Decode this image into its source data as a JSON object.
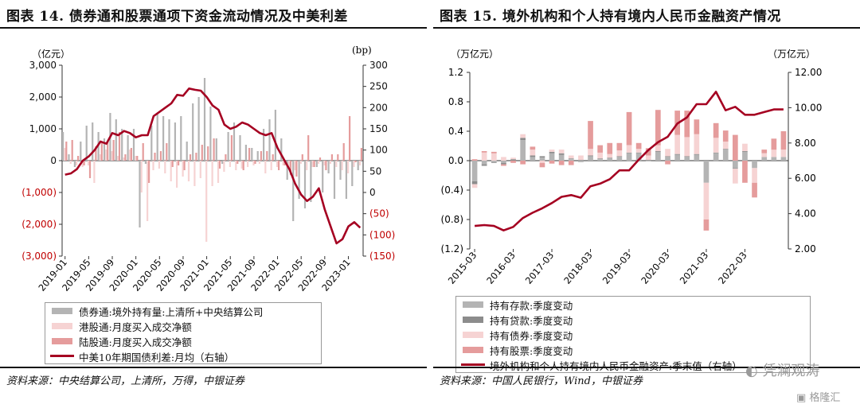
{
  "left_panel": {
    "title": "图表 14. 债券通和股票通项下资金流动情况及中美利差",
    "source": "资料来源：中央结算公司，上清所，万得，中银证券",
    "left_unit": "（亿元）",
    "right_unit": "(bp)",
    "legend": [
      "债券通:境外持有量:上清所+中央结算公司",
      "港股通:月度买入成交净额",
      "陆股通:月度买入成交净额",
      "中美10年期国债利差:月均（右轴）"
    ]
  },
  "right_panel": {
    "title": "图表 15. 境外机构和个人持有境内人民币金融资产情况",
    "source": "资料来源：中国人民银行，Wind，中银证券",
    "left_unit": "（万亿元）",
    "right_unit": "（万亿元）",
    "legend": [
      "持有存款:季度变动",
      "持有贷款:季度变动",
      "持有债券:季度变动",
      "持有股票:季度变动",
      "境外机构和个人持有境内人民币金融资产:季末值（右轴）"
    ]
  },
  "watermark": {
    "wechat": "凭澜观涛",
    "brand": "格隆汇"
  },
  "colors": {
    "series_gray": "#b4b4b4",
    "series_dark": "#8c8c8c",
    "series_lightpink": "#f6d3d3",
    "series_pink": "#e59c9c",
    "line": "#a50021",
    "axis_red": "#c00000"
  },
  "chart_data": [
    {
      "type": "bar",
      "categories": [
        "2019-01",
        "2019-02",
        "2019-03",
        "2019-04",
        "2019-05",
        "2019-06",
        "2019-07",
        "2019-08",
        "2019-09",
        "2019-10",
        "2019-11",
        "2019-12",
        "2020-01",
        "2020-02",
        "2020-03",
        "2020-04",
        "2020-05",
        "2020-06",
        "2020-07",
        "2020-08",
        "2020-09",
        "2020-10",
        "2020-11",
        "2020-12",
        "2021-01",
        "2021-02",
        "2021-03",
        "2021-04",
        "2021-05",
        "2021-06",
        "2021-07",
        "2021-08",
        "2021-09",
        "2021-10",
        "2021-11",
        "2021-12",
        "2022-01",
        "2022-02",
        "2022-03",
        "2022-04",
        "2022-05",
        "2022-06",
        "2022-07",
        "2022-08",
        "2022-09",
        "2022-10",
        "2022-11",
        "2022-12",
        "2023-01",
        "2023-02",
        "2023-03"
      ],
      "x_tick_labels": [
        "2019-01",
        "2019-05",
        "2019-09",
        "2020-01",
        "2020-05",
        "2020-09",
        "2021-01",
        "2021-05",
        "2021-09",
        "2022-01",
        "2022-05",
        "2022-09",
        "2023-01"
      ],
      "y_left_ticks": [
        "3,000",
        "2,000",
        "1,000",
        "0",
        "(1,000)",
        "(2,000)",
        "(3,000)"
      ],
      "y_right_ticks": [
        "300",
        "250",
        "200",
        "150",
        "100",
        "50",
        "0",
        "(50)",
        "(100)",
        "(150)"
      ],
      "ylim_left": [
        -3000,
        3000
      ],
      "ylim_right": [
        -150,
        300
      ],
      "series": [
        {
          "name": "债券通:境外持有量:上清所+中央结算公司",
          "kind": "bar",
          "values": [
            900,
            200,
            -200,
            600,
            1100,
            1200,
            900,
            700,
            1500,
            1300,
            1000,
            800,
            1000,
            -2100,
            -100,
            1100,
            1500,
            1400,
            1300,
            1200,
            1400,
            600,
            1800,
            2000,
            2600,
            1700,
            700,
            -100,
            900,
            1200,
            800,
            500,
            400,
            300,
            1000,
            1300,
            1600,
            700,
            -600,
            -1900,
            -1200,
            -1500,
            -1300,
            -200,
            -1000,
            -400,
            -1200,
            -600,
            -1200,
            -800,
            -300
          ]
        },
        {
          "name": "港股通:月度买入成交净额",
          "kind": "bar",
          "values": [
            400,
            -100,
            -150,
            -200,
            -150,
            -700,
            200,
            350,
            300,
            150,
            100,
            350,
            150,
            -1000,
            -1900,
            -300,
            -250,
            -400,
            -650,
            -850,
            -500,
            -650,
            -800,
            -550,
            -2550,
            -800,
            -700,
            -350,
            -200,
            -300,
            -250,
            -200,
            -150,
            -100,
            -400,
            -300,
            -200,
            -150,
            -250,
            -300,
            -100,
            -300,
            -200,
            -100,
            -150,
            -100,
            -200,
            -300,
            -400,
            -200,
            -150
          ]
        },
        {
          "name": "陆股通:月度买入成交净额",
          "kind": "bar",
          "values": [
            600,
            650,
            150,
            -150,
            -550,
            450,
            550,
            600,
            650,
            900,
            200,
            400,
            150,
            550,
            -700,
            250,
            300,
            550,
            -200,
            -150,
            -300,
            200,
            250,
            500,
            450,
            700,
            -250,
            200,
            800,
            -100,
            -300,
            400,
            -100,
            300,
            300,
            200,
            -300,
            -150,
            -450,
            -500,
            200,
            800,
            -200,
            100,
            -300,
            200,
            200,
            550,
            1400,
            -50,
            400
          ]
        },
        {
          "name": "中美10年期国债利差:月均（右轴）",
          "kind": "line",
          "axis": "right",
          "values": [
            42,
            45,
            55,
            75,
            85,
            100,
            120,
            115,
            140,
            135,
            145,
            140,
            130,
            135,
            135,
            180,
            190,
            200,
            210,
            230,
            228,
            245,
            242,
            240,
            225,
            205,
            195,
            160,
            150,
            155,
            165,
            160,
            150,
            140,
            135,
            140,
            105,
            80,
            55,
            20,
            -5,
            -20,
            -10,
            10,
            -40,
            -80,
            -120,
            -110,
            -80,
            -70,
            -83
          ]
        }
      ]
    },
    {
      "type": "bar",
      "categories": [
        "2015-03",
        "2015-06",
        "2015-09",
        "2015-12",
        "2016-03",
        "2016-06",
        "2016-09",
        "2016-12",
        "2017-03",
        "2017-06",
        "2017-09",
        "2017-12",
        "2018-03",
        "2018-06",
        "2018-09",
        "2018-12",
        "2019-03",
        "2019-06",
        "2019-09",
        "2019-12",
        "2020-03",
        "2020-06",
        "2020-09",
        "2020-12",
        "2021-03",
        "2021-06",
        "2021-09",
        "2021-12",
        "2022-03",
        "2022-06",
        "2022-09",
        "2022-12",
        "2023-03"
      ],
      "x_tick_labels": [
        "2015-03",
        "2016-03",
        "2017-03",
        "2018-03",
        "2019-03",
        "2020-03",
        "2021-03",
        "2022-03"
      ],
      "y_left_ticks": [
        "1.2",
        "0.8",
        "0.4",
        "0.0",
        "(0.4)",
        "(0.8)",
        "(1.2)"
      ],
      "y_right_ticks": [
        "12.00",
        "10.00",
        "8.00",
        "6.00",
        "4.00",
        "2.00"
      ],
      "ylim_left": [
        -1.2,
        1.2
      ],
      "ylim_right": [
        2,
        12
      ],
      "series": [
        {
          "name": "持有存款:季度变动",
          "kind": "stacked",
          "values": [
            -0.28,
            -0.05,
            -0.02,
            -0.03,
            0.0,
            0.28,
            0.05,
            0.04,
            0.1,
            0.08,
            0.02,
            -0.02,
            0.06,
            0.02,
            0.03,
            0.05,
            0.1,
            0.1,
            -0.01,
            0.12,
            0.05,
            0.08,
            0.05,
            0.08,
            -0.3,
            0.1,
            0.15,
            -0.1,
            0.12,
            -0.1,
            0.05,
            0.05,
            0.05
          ]
        },
        {
          "name": "持有贷款:季度变动",
          "kind": "stacked",
          "values": [
            -0.04,
            -0.02,
            -0.01,
            -0.02,
            0.02,
            0.03,
            0.02,
            0.02,
            0.02,
            0.02,
            0.01,
            0.01,
            0.01,
            0.01,
            0.01,
            0.01,
            0.01,
            0.01,
            0.01,
            0.01,
            0.01,
            0.01,
            0.01,
            0.01,
            0.01,
            0.01,
            0.01,
            -0.01,
            0.01,
            0.0,
            0.0,
            0.0,
            0.0
          ]
        },
        {
          "name": "持有债券:季度变动",
          "kind": "stacked",
          "values": [
            -0.05,
            0.11,
            0.1,
            0.05,
            0.02,
            0.05,
            0.08,
            -0.03,
            0.03,
            0.05,
            0.04,
            0.06,
            0.09,
            0.08,
            0.05,
            0.08,
            0.1,
            0.05,
            0.06,
            0.08,
            0.1,
            0.26,
            0.26,
            0.27,
            -0.5,
            0.2,
            0.1,
            -0.2,
            0.1,
            -0.2,
            0.05,
            0.1,
            0.1
          ]
        },
        {
          "name": "持有股票:季度变动",
          "kind": "stacked",
          "values": [
            0.02,
            0.02,
            0.02,
            -0.02,
            -0.03,
            -0.05,
            0.04,
            -0.06,
            -0.04,
            -0.06,
            -0.06,
            0.0,
            0.38,
            0.1,
            0.15,
            0.1,
            0.45,
            0.08,
            0.1,
            0.48,
            -0.05,
            0.33,
            0.36,
            0.2,
            -0.15,
            0.2,
            0.15,
            0.35,
            -0.3,
            -0.2,
            0.05,
            0.15,
            0.25
          ]
        },
        {
          "name": "境外机构和个人持有境内人民币金融资产:季末值（右轴）",
          "kind": "line",
          "axis": "right",
          "values": [
            3.3,
            3.35,
            3.3,
            3.05,
            3.25,
            3.75,
            4.05,
            4.3,
            4.6,
            4.95,
            5.05,
            4.9,
            5.55,
            5.7,
            5.95,
            6.45,
            6.45,
            7.05,
            7.6,
            8.05,
            8.35,
            9.1,
            9.45,
            10.2,
            10.2,
            10.9,
            9.85,
            10.05,
            9.6,
            9.6,
            9.75,
            9.9,
            9.9
          ]
        }
      ]
    }
  ]
}
